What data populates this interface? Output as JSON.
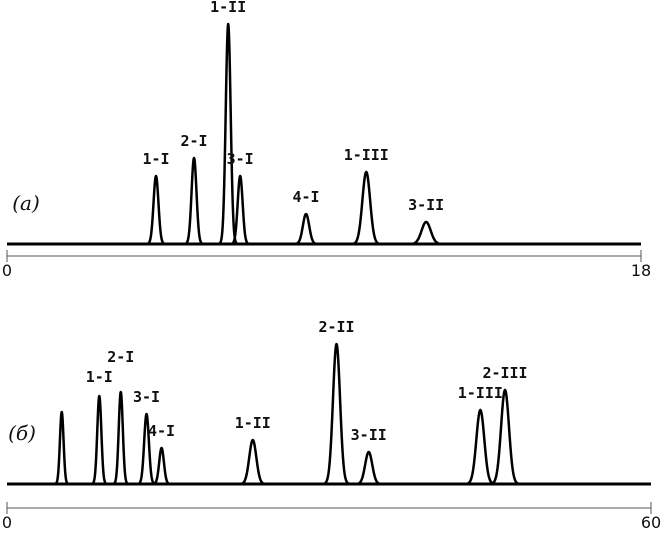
{
  "chart_data": [
    {
      "type": "chromatogram",
      "panel_label": "(a)",
      "xlim": [
        0,
        18
      ],
      "xticks": [
        0,
        18
      ],
      "peak_labels": [
        "1-I",
        "2-I",
        "1-II",
        "3-I",
        "4-I",
        "1-III",
        "3-II"
      ],
      "peak_x": [
        4.23,
        5.31,
        6.28,
        6.62,
        8.49,
        10.2,
        11.9
      ],
      "peak_heights": [
        68,
        86,
        220,
        68,
        30,
        72,
        22
      ],
      "peak_widths": [
        0.07,
        0.07,
        0.07,
        0.07,
        0.09,
        0.11,
        0.13
      ]
    },
    {
      "type": "chromatogram",
      "panel_label": "(б)",
      "xlim": [
        0,
        60
      ],
      "xticks": [
        0,
        60
      ],
      "peak_labels": [
        null,
        "1-I",
        "2-I",
        "3-I",
        "4-I",
        "1-II",
        "2-II",
        "3-II",
        "1-III",
        "2-III"
      ],
      "peak_x": [
        5.1,
        8.6,
        10.6,
        13.0,
        14.4,
        22.9,
        30.7,
        33.7,
        44.1,
        46.4
      ],
      "peak_heights": [
        72,
        88,
        92,
        70,
        36,
        44,
        140,
        32,
        74,
        94
      ],
      "peak_widths": [
        0.17,
        0.19,
        0.19,
        0.22,
        0.22,
        0.33,
        0.33,
        0.33,
        0.37,
        0.37
      ]
    }
  ]
}
